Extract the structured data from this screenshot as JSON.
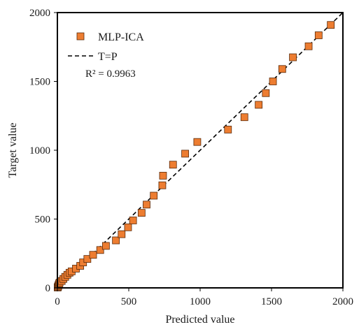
{
  "chart_data": {
    "type": "scatter",
    "xlabel": "Predicted value",
    "ylabel": "Target value",
    "xlim": [
      0,
      2000
    ],
    "ylim": [
      0,
      2000
    ],
    "xticks": [
      "0",
      "500",
      "1000",
      "1500",
      "2000"
    ],
    "yticks": [
      "0",
      "500",
      "1000",
      "1500",
      "2000"
    ],
    "grid": false,
    "legend_position": "top-left",
    "series": [
      {
        "name": "MLP-ICA",
        "marker": "square",
        "color": "#ED7D31",
        "edge_color": "#5a2a0a",
        "points": [
          [
            2,
            3
          ],
          [
            4,
            8
          ],
          [
            6,
            14
          ],
          [
            9,
            22
          ],
          [
            12,
            30
          ],
          [
            15,
            38
          ],
          [
            30,
            50
          ],
          [
            42,
            65
          ],
          [
            55,
            80
          ],
          [
            70,
            95
          ],
          [
            85,
            110
          ],
          [
            100,
            120
          ],
          [
            130,
            140
          ],
          [
            160,
            160
          ],
          [
            180,
            185
          ],
          [
            210,
            210
          ],
          [
            250,
            240
          ],
          [
            300,
            275
          ],
          [
            340,
            305
          ],
          [
            410,
            345
          ],
          [
            450,
            390
          ],
          [
            495,
            440
          ],
          [
            530,
            490
          ],
          [
            590,
            545
          ],
          [
            625,
            605
          ],
          [
            675,
            670
          ],
          [
            735,
            745
          ],
          [
            740,
            815
          ],
          [
            810,
            895
          ],
          [
            895,
            975
          ],
          [
            980,
            1060
          ],
          [
            1195,
            1150
          ],
          [
            1310,
            1240
          ],
          [
            1410,
            1330
          ],
          [
            1460,
            1415
          ],
          [
            1510,
            1500
          ],
          [
            1575,
            1590
          ],
          [
            1650,
            1675
          ],
          [
            1760,
            1755
          ],
          [
            1830,
            1835
          ],
          [
            1915,
            1910
          ]
        ]
      }
    ],
    "reference_line": {
      "name": "T=P",
      "style": "dashed",
      "color": "#000000",
      "points": [
        [
          0,
          0
        ],
        [
          2000,
          2000
        ]
      ]
    },
    "annotation": "R² = 0.9963"
  }
}
